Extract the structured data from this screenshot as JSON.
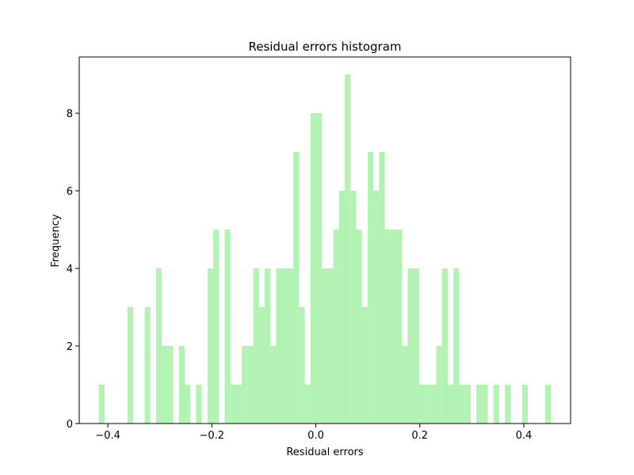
{
  "chart_data": {
    "type": "bar",
    "title": "Residual errors histogram",
    "xlabel": "Residual errors",
    "ylabel": "Frequency",
    "xlim": [
      -0.455,
      0.49
    ],
    "ylim": [
      0,
      9.45
    ],
    "xticks": [
      -0.4,
      -0.2,
      0.0,
      0.2,
      0.4
    ],
    "xtick_labels": [
      "−0.4",
      "−0.2",
      "0.0",
      "0.2",
      "0.4"
    ],
    "yticks": [
      0,
      2,
      4,
      6,
      8
    ],
    "ytick_labels": [
      "0",
      "2",
      "4",
      "6",
      "8"
    ],
    "grid": false,
    "bar_color": "#b2f2b2",
    "bins": [
      {
        "x0": -0.4173,
        "x1": -0.4063,
        "count": 1
      },
      {
        "x0": -0.3623,
        "x1": -0.3513,
        "count": 3
      },
      {
        "x0": -0.3293,
        "x1": -0.3183,
        "count": 3
      },
      {
        "x0": -0.3073,
        "x1": -0.2963,
        "count": 4
      },
      {
        "x0": -0.2963,
        "x1": -0.2853,
        "count": 2
      },
      {
        "x0": -0.2853,
        "x1": -0.2743,
        "count": 2
      },
      {
        "x0": -0.2633,
        "x1": -0.2523,
        "count": 2
      },
      {
        "x0": -0.2523,
        "x1": -0.2413,
        "count": 1
      },
      {
        "x0": -0.2303,
        "x1": -0.2193,
        "count": 1
      },
      {
        "x0": -0.2083,
        "x1": -0.1973,
        "count": 4
      },
      {
        "x0": -0.1973,
        "x1": -0.1863,
        "count": 5
      },
      {
        "x0": -0.1753,
        "x1": -0.1643,
        "count": 5
      },
      {
        "x0": -0.1643,
        "x1": -0.1533,
        "count": 1
      },
      {
        "x0": -0.1533,
        "x1": -0.1423,
        "count": 1
      },
      {
        "x0": -0.1423,
        "x1": -0.1313,
        "count": 2
      },
      {
        "x0": -0.1313,
        "x1": -0.1203,
        "count": 2
      },
      {
        "x0": -0.1203,
        "x1": -0.1093,
        "count": 4
      },
      {
        "x0": -0.1093,
        "x1": -0.0983,
        "count": 3
      },
      {
        "x0": -0.0983,
        "x1": -0.0873,
        "count": 4
      },
      {
        "x0": -0.0873,
        "x1": -0.0763,
        "count": 2
      },
      {
        "x0": -0.0763,
        "x1": -0.0653,
        "count": 4
      },
      {
        "x0": -0.0653,
        "x1": -0.0543,
        "count": 4
      },
      {
        "x0": -0.0543,
        "x1": -0.0433,
        "count": 4
      },
      {
        "x0": -0.0433,
        "x1": -0.0323,
        "count": 7
      },
      {
        "x0": -0.0323,
        "x1": -0.0213,
        "count": 3
      },
      {
        "x0": -0.0213,
        "x1": -0.0103,
        "count": 1
      },
      {
        "x0": -0.0103,
        "x1": 0.0007,
        "count": 8
      },
      {
        "x0": 0.0007,
        "x1": 0.0117,
        "count": 8
      },
      {
        "x0": 0.0117,
        "x1": 0.0227,
        "count": 4
      },
      {
        "x0": 0.0227,
        "x1": 0.0337,
        "count": 4
      },
      {
        "x0": 0.0337,
        "x1": 0.0447,
        "count": 5
      },
      {
        "x0": 0.0447,
        "x1": 0.0557,
        "count": 6
      },
      {
        "x0": 0.0557,
        "x1": 0.0667,
        "count": 9
      },
      {
        "x0": 0.0667,
        "x1": 0.0777,
        "count": 6
      },
      {
        "x0": 0.0777,
        "x1": 0.0887,
        "count": 5
      },
      {
        "x0": 0.0887,
        "x1": 0.0997,
        "count": 3
      },
      {
        "x0": 0.0997,
        "x1": 0.1107,
        "count": 7
      },
      {
        "x0": 0.1107,
        "x1": 0.1217,
        "count": 6
      },
      {
        "x0": 0.1217,
        "x1": 0.1327,
        "count": 7
      },
      {
        "x0": 0.1327,
        "x1": 0.1437,
        "count": 5
      },
      {
        "x0": 0.1437,
        "x1": 0.1547,
        "count": 5
      },
      {
        "x0": 0.1547,
        "x1": 0.1657,
        "count": 5
      },
      {
        "x0": 0.1657,
        "x1": 0.1767,
        "count": 2
      },
      {
        "x0": 0.1767,
        "x1": 0.1877,
        "count": 4
      },
      {
        "x0": 0.1877,
        "x1": 0.1987,
        "count": 4
      },
      {
        "x0": 0.1987,
        "x1": 0.2097,
        "count": 1
      },
      {
        "x0": 0.2097,
        "x1": 0.2207,
        "count": 1
      },
      {
        "x0": 0.2207,
        "x1": 0.2317,
        "count": 1
      },
      {
        "x0": 0.2317,
        "x1": 0.2427,
        "count": 2
      },
      {
        "x0": 0.2427,
        "x1": 0.2537,
        "count": 4
      },
      {
        "x0": 0.2537,
        "x1": 0.2647,
        "count": 1
      },
      {
        "x0": 0.2647,
        "x1": 0.2757,
        "count": 4
      },
      {
        "x0": 0.2757,
        "x1": 0.2867,
        "count": 1
      },
      {
        "x0": 0.2867,
        "x1": 0.2977,
        "count": 1
      },
      {
        "x0": 0.3087,
        "x1": 0.3197,
        "count": 1
      },
      {
        "x0": 0.3197,
        "x1": 0.3307,
        "count": 1
      },
      {
        "x0": 0.3417,
        "x1": 0.3527,
        "count": 1
      },
      {
        "x0": 0.3637,
        "x1": 0.3747,
        "count": 1
      },
      {
        "x0": 0.3967,
        "x1": 0.4077,
        "count": 1
      },
      {
        "x0": 0.4407,
        "x1": 0.4517,
        "count": 1
      }
    ]
  }
}
